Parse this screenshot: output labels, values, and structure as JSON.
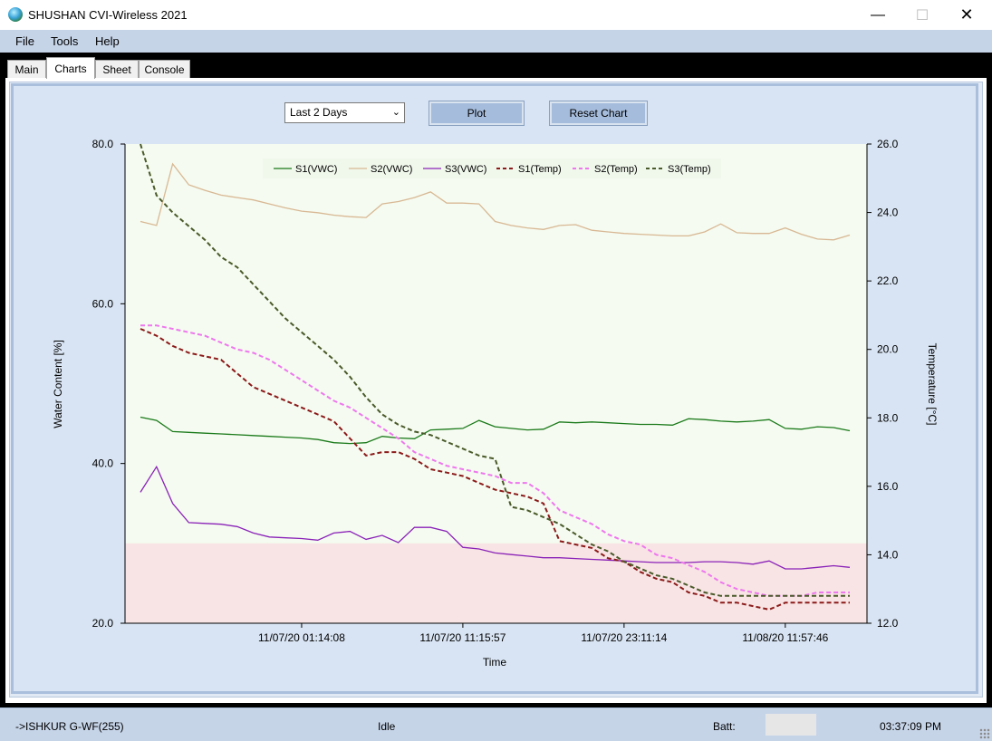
{
  "window": {
    "title": "SHUSHAN CVI-Wireless 2021",
    "min_glyph": "—",
    "max_glyph": "☐",
    "close_glyph": "✕"
  },
  "menu": {
    "items": [
      "File",
      "Tools",
      "Help"
    ]
  },
  "tabs": [
    "Main",
    "Charts",
    "Sheet",
    "Console"
  ],
  "active_tab": "Charts",
  "controls": {
    "range_value": "Last 2 Days",
    "plot_label": "Plot",
    "reset_label": "Reset Chart"
  },
  "status": {
    "device": "->ISHKUR G-WF(255)",
    "state": "Idle",
    "batt_label": "Batt:",
    "time": "03:37:09 PM"
  },
  "colors": {
    "s1": "#1a7a1a",
    "s2": "#d8b894",
    "s3": "#8a22b8",
    "s1temp": "#8b1a1a",
    "s2temp": "#ee77ee",
    "s3temp": "#4a5a2a",
    "plot_bg": "#f5fbf0",
    "low_band": "#f8e4e4",
    "panel": "#d8e4f3"
  },
  "chart_data": {
    "type": "line",
    "xlabel": "Time",
    "ylabel": "Water Content [%]",
    "y2label": "Temperature [°C]",
    "ylim": [
      20,
      80
    ],
    "y2lim": [
      12,
      26
    ],
    "yticks": [
      "80.0",
      "60.0",
      "40.0",
      "20.0"
    ],
    "y2ticks": [
      "26.0",
      "24.0",
      "22.0",
      "20.0",
      "18.0",
      "16.0",
      "14.0",
      "12.0"
    ],
    "xticks": [
      "11/07/20 01:14:08",
      "11/07/20 11:15:57",
      "11/07/20 23:11:14",
      "11/08/20 11:57:46"
    ],
    "xtick_index": [
      10,
      20,
      30,
      40
    ],
    "x_range": [
      0,
      44
    ],
    "low_band_max": 30,
    "legend": [
      "S1(VWC)",
      "S2(VWC)",
      "S3(VWC)",
      "S1(Temp)",
      "S2(Temp)",
      "S3(Temp)"
    ],
    "series": [
      {
        "name": "S1(VWC)",
        "axis": "left",
        "dash": false,
        "values": [
          45.8,
          45.4,
          44,
          43.9,
          43.8,
          43.7,
          43.6,
          43.5,
          43.4,
          43.3,
          43.2,
          43.0,
          42.6,
          42.5,
          42.6,
          43.4,
          43.2,
          43.1,
          44.2,
          44.3,
          44.4,
          45.4,
          44.6,
          44.4,
          44.2,
          44.3,
          45.2,
          45.1,
          45.2,
          45.1,
          45.0,
          44.9,
          44.9,
          44.8,
          45.6,
          45.5,
          45.3,
          45.2,
          45.3,
          45.5,
          44.4,
          44.3,
          44.6,
          44.5,
          44.1
        ]
      },
      {
        "name": "S2(VWC)",
        "axis": "left",
        "dash": false,
        "values": [
          70.3,
          69.8,
          77.5,
          74.9,
          74.2,
          73.6,
          73.3,
          73.0,
          72.5,
          72.0,
          71.6,
          71.4,
          71.1,
          70.9,
          70.8,
          72.5,
          72.8,
          73.3,
          74.0,
          72.6,
          72.6,
          72.5,
          70.3,
          69.8,
          69.5,
          69.3,
          69.8,
          69.9,
          69.2,
          69.0,
          68.8,
          68.7,
          68.6,
          68.5,
          68.5,
          69.0,
          70.0,
          68.9,
          68.8,
          68.8,
          69.5,
          68.7,
          68.1,
          68.0,
          68.6
        ]
      },
      {
        "name": "S3(VWC)",
        "axis": "left",
        "dash": false,
        "values": [
          36.4,
          39.6,
          35.0,
          32.6,
          32.5,
          32.4,
          32.1,
          31.3,
          30.8,
          30.7,
          30.6,
          30.4,
          31.3,
          31.5,
          30.5,
          31.0,
          30.1,
          32.0,
          32.0,
          31.5,
          29.5,
          29.3,
          28.8,
          28.6,
          28.4,
          28.2,
          28.2,
          28.1,
          28.0,
          27.9,
          27.8,
          27.7,
          27.6,
          27.6,
          27.6,
          27.7,
          27.7,
          27.6,
          27.4,
          27.8,
          26.8,
          26.8,
          27.0,
          27.2,
          27.0
        ]
      },
      {
        "name": "S1(Temp)",
        "axis": "right",
        "dash": true,
        "values": [
          20.6,
          20.4,
          20.1,
          19.9,
          19.8,
          19.7,
          19.3,
          18.9,
          18.7,
          18.5,
          18.3,
          18.1,
          17.9,
          17.4,
          16.9,
          17.0,
          17.0,
          16.8,
          16.5,
          16.4,
          16.3,
          16.1,
          15.9,
          15.8,
          15.7,
          15.5,
          14.4,
          14.3,
          14.2,
          13.9,
          13.8,
          13.5,
          13.3,
          13.2,
          12.9,
          12.8,
          12.6,
          12.6,
          12.5,
          12.4,
          12.6,
          12.6,
          12.6,
          12.6,
          12.6
        ]
      },
      {
        "name": "S2(Temp)",
        "axis": "right",
        "dash": true,
        "values": [
          20.7,
          20.7,
          20.6,
          20.5,
          20.4,
          20.2,
          20.0,
          19.9,
          19.7,
          19.4,
          19.1,
          18.8,
          18.5,
          18.3,
          18.0,
          17.7,
          17.4,
          17.0,
          16.8,
          16.6,
          16.5,
          16.4,
          16.3,
          16.1,
          16.1,
          15.8,
          15.3,
          15.1,
          14.9,
          14.6,
          14.4,
          14.3,
          14.0,
          13.9,
          13.7,
          13.5,
          13.2,
          13.0,
          12.9,
          12.8,
          12.8,
          12.8,
          12.9,
          12.9,
          12.9
        ]
      },
      {
        "name": "S3(Temp)",
        "axis": "right",
        "dash": true,
        "values": [
          26.0,
          24.5,
          24.0,
          23.6,
          23.2,
          22.7,
          22.4,
          21.9,
          21.4,
          20.9,
          20.5,
          20.1,
          19.7,
          19.2,
          18.6,
          18.1,
          17.8,
          17.6,
          17.5,
          17.3,
          17.1,
          16.9,
          16.8,
          15.4,
          15.3,
          15.1,
          14.9,
          14.6,
          14.3,
          14.1,
          13.8,
          13.6,
          13.4,
          13.3,
          13.1,
          12.9,
          12.8,
          12.8,
          12.8,
          12.8,
          12.8,
          12.8,
          12.8,
          12.8,
          12.8
        ]
      }
    ]
  }
}
